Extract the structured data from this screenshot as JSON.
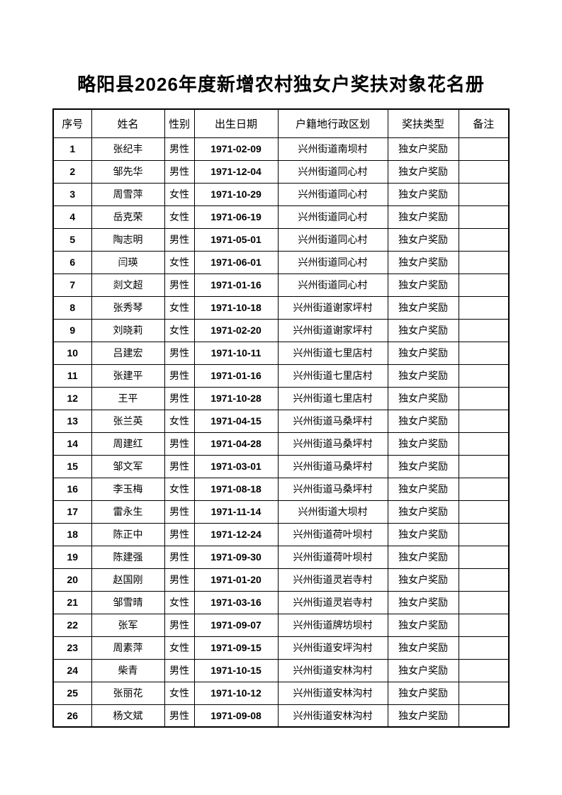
{
  "title": "略阳县2026年度新增农村独女户奖扶对象花名册",
  "colors": {
    "background": "#ffffff",
    "text": "#000000",
    "border": "#000000"
  },
  "table": {
    "headers": [
      "序号",
      "姓名",
      "性别",
      "出生日期",
      "户籍地行政区划",
      "奖扶类型",
      "备注"
    ],
    "rows": [
      {
        "no": "1",
        "name": "张纪丰",
        "gender": "男性",
        "birth": "1971-02-09",
        "district": "兴州街道南坝村",
        "type": "独女户奖励",
        "note": ""
      },
      {
        "no": "2",
        "name": "邹先华",
        "gender": "男性",
        "birth": "1971-12-04",
        "district": "兴州街道同心村",
        "type": "独女户奖励",
        "note": ""
      },
      {
        "no": "3",
        "name": "周雪萍",
        "gender": "女性",
        "birth": "1971-10-29",
        "district": "兴州街道同心村",
        "type": "独女户奖励",
        "note": ""
      },
      {
        "no": "4",
        "name": "岳克荣",
        "gender": "女性",
        "birth": "1971-06-19",
        "district": "兴州街道同心村",
        "type": "独女户奖励",
        "note": ""
      },
      {
        "no": "5",
        "name": "陶志明",
        "gender": "男性",
        "birth": "1971-05-01",
        "district": "兴州街道同心村",
        "type": "独女户奖励",
        "note": ""
      },
      {
        "no": "6",
        "name": "闫瑛",
        "gender": "女性",
        "birth": "1971-06-01",
        "district": "兴州街道同心村",
        "type": "独女户奖励",
        "note": ""
      },
      {
        "no": "7",
        "name": "剡文超",
        "gender": "男性",
        "birth": "1971-01-16",
        "district": "兴州街道同心村",
        "type": "独女户奖励",
        "note": ""
      },
      {
        "no": "8",
        "name": "张秀琴",
        "gender": "女性",
        "birth": "1971-10-18",
        "district": "兴州街道谢家坪村",
        "type": "独女户奖励",
        "note": ""
      },
      {
        "no": "9",
        "name": "刘晓莉",
        "gender": "女性",
        "birth": "1971-02-20",
        "district": "兴州街道谢家坪村",
        "type": "独女户奖励",
        "note": ""
      },
      {
        "no": "10",
        "name": "吕建宏",
        "gender": "男性",
        "birth": "1971-10-11",
        "district": "兴州街道七里店村",
        "type": "独女户奖励",
        "note": ""
      },
      {
        "no": "11",
        "name": "张建平",
        "gender": "男性",
        "birth": "1971-01-16",
        "district": "兴州街道七里店村",
        "type": "独女户奖励",
        "note": ""
      },
      {
        "no": "12",
        "name": "王平",
        "gender": "男性",
        "birth": "1971-10-28",
        "district": "兴州街道七里店村",
        "type": "独女户奖励",
        "note": ""
      },
      {
        "no": "13",
        "name": "张兰英",
        "gender": "女性",
        "birth": "1971-04-15",
        "district": "兴州街道马桑坪村",
        "type": "独女户奖励",
        "note": ""
      },
      {
        "no": "14",
        "name": "周建红",
        "gender": "男性",
        "birth": "1971-04-28",
        "district": "兴州街道马桑坪村",
        "type": "独女户奖励",
        "note": ""
      },
      {
        "no": "15",
        "name": "邹文军",
        "gender": "男性",
        "birth": "1971-03-01",
        "district": "兴州街道马桑坪村",
        "type": "独女户奖励",
        "note": ""
      },
      {
        "no": "16",
        "name": "李玉梅",
        "gender": "女性",
        "birth": "1971-08-18",
        "district": "兴州街道马桑坪村",
        "type": "独女户奖励",
        "note": ""
      },
      {
        "no": "17",
        "name": "雷永生",
        "gender": "男性",
        "birth": "1971-11-14",
        "district": "兴州街道大坝村",
        "type": "独女户奖励",
        "note": ""
      },
      {
        "no": "18",
        "name": "陈正中",
        "gender": "男性",
        "birth": "1971-12-24",
        "district": "兴州街道荷叶坝村",
        "type": "独女户奖励",
        "note": ""
      },
      {
        "no": "19",
        "name": "陈建强",
        "gender": "男性",
        "birth": "1971-09-30",
        "district": "兴州街道荷叶坝村",
        "type": "独女户奖励",
        "note": ""
      },
      {
        "no": "20",
        "name": "赵国刚",
        "gender": "男性",
        "birth": "1971-01-20",
        "district": "兴州街道灵岩寺村",
        "type": "独女户奖励",
        "note": ""
      },
      {
        "no": "21",
        "name": "邹雪晴",
        "gender": "女性",
        "birth": "1971-03-16",
        "district": "兴州街道灵岩寺村",
        "type": "独女户奖励",
        "note": ""
      },
      {
        "no": "22",
        "name": "张军",
        "gender": "男性",
        "birth": "1971-09-07",
        "district": "兴州街道牌坊坝村",
        "type": "独女户奖励",
        "note": ""
      },
      {
        "no": "23",
        "name": "周素萍",
        "gender": "女性",
        "birth": "1971-09-15",
        "district": "兴州街道安坪沟村",
        "type": "独女户奖励",
        "note": ""
      },
      {
        "no": "24",
        "name": "柴青",
        "gender": "男性",
        "birth": "1971-10-15",
        "district": "兴州街道安林沟村",
        "type": "独女户奖励",
        "note": ""
      },
      {
        "no": "25",
        "name": "张丽花",
        "gender": "女性",
        "birth": "1971-10-12",
        "district": "兴州街道安林沟村",
        "type": "独女户奖励",
        "note": ""
      },
      {
        "no": "26",
        "name": "杨文斌",
        "gender": "男性",
        "birth": "1971-09-08",
        "district": "兴州街道安林沟村",
        "type": "独女户奖励",
        "note": ""
      }
    ]
  }
}
